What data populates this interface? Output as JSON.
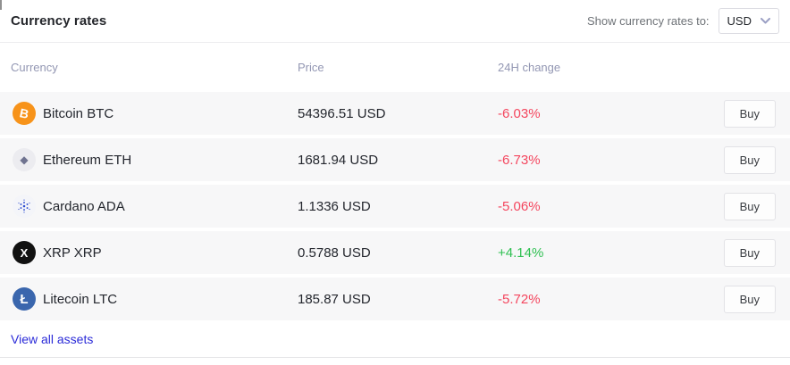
{
  "header": {
    "title": "Currency rates",
    "show_rates_label": "Show currency rates to:",
    "currency_select": {
      "value": "USD"
    }
  },
  "table": {
    "columns": [
      "Currency",
      "Price",
      "24H change"
    ],
    "buy_label": "Buy",
    "rows": [
      {
        "name": "Bitcoin BTC",
        "price": "54396.51 USD",
        "change": "-6.03%",
        "direction": "down",
        "icon": {
          "name": "bitcoin-icon",
          "glyph": "B",
          "bg": "#f7931a",
          "fg": "#ffffff"
        }
      },
      {
        "name": "Ethereum ETH",
        "price": "1681.94 USD",
        "change": "-6.73%",
        "direction": "down",
        "icon": {
          "name": "ethereum-icon",
          "glyph": "◆",
          "bg": "#ececf0",
          "fg": "#6f7390"
        }
      },
      {
        "name": "Cardano ADA",
        "price": "1.1336 USD",
        "change": "-5.06%",
        "direction": "down",
        "icon": {
          "name": "cardano-icon",
          "glyph": "cardano-dots",
          "bg": "#f4f5f9",
          "fg": "#2b4bd0"
        }
      },
      {
        "name": "XRP XRP",
        "price": "0.5788 USD",
        "change": "+4.14%",
        "direction": "up",
        "icon": {
          "name": "xrp-icon",
          "glyph": "X",
          "bg": "#111111",
          "fg": "#ffffff"
        }
      },
      {
        "name": "Litecoin LTC",
        "price": "185.87 USD",
        "change": "-5.72%",
        "direction": "down",
        "icon": {
          "name": "litecoin-icon",
          "glyph": "Ł",
          "bg": "#3a66ad",
          "fg": "#ffffff"
        }
      }
    ]
  },
  "footer": {
    "view_all_label": "View all assets"
  },
  "colors": {
    "positive": "#2fc052",
    "negative": "#f4465e",
    "link": "#2b2bd8",
    "muted_header": "#9397b3",
    "chevron": "#9ba0c4"
  }
}
